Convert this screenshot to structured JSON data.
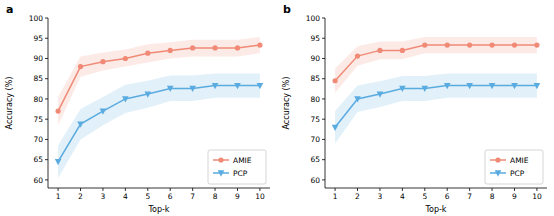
{
  "chart_data": [
    {
      "type": "line",
      "title": "a",
      "x_label": "Top-k",
      "y_label": "Accuracy (%)",
      "x": [
        1,
        2,
        3,
        4,
        5,
        6,
        7,
        8,
        9,
        10
      ],
      "xlim": [
        0.55,
        10.45
      ],
      "xticks": [
        1,
        2,
        3,
        4,
        5,
        6,
        7,
        8,
        9,
        10
      ],
      "ylim": [
        58,
        100
      ],
      "yticks": [
        60,
        65,
        70,
        75,
        80,
        85,
        90,
        95,
        100
      ],
      "grid": false,
      "legend": "lower right",
      "series": [
        {
          "name": "AMIE",
          "color": "#f08a76",
          "marker": "circle",
          "values": [
            77,
            88,
            89.2,
            90,
            91.3,
            92,
            92.6,
            92.6,
            92.6,
            93.3
          ],
          "lower": [
            73.5,
            85.5,
            87,
            88,
            89,
            90,
            90.5,
            90.5,
            90.5,
            91.3
          ],
          "upper": [
            80.5,
            90.5,
            91.5,
            92.2,
            93.5,
            94,
            94.6,
            94.6,
            94.6,
            95.3
          ]
        },
        {
          "name": "PCP",
          "color": "#5aabe0",
          "marker": "triangle_down",
          "values": [
            64.5,
            73.8,
            77,
            80,
            81.2,
            82.6,
            82.6,
            83.3,
            83.3,
            83.3
          ],
          "lower": [
            60.5,
            70,
            73.5,
            76.5,
            77.8,
            79.5,
            79.5,
            80.3,
            80.3,
            80.3
          ],
          "upper": [
            68.5,
            77.5,
            80.5,
            83.5,
            84.5,
            85.8,
            85.8,
            86.3,
            86.3,
            86.3
          ]
        }
      ]
    },
    {
      "type": "line",
      "title": "b",
      "x_label": "Top-k",
      "y_label": "Accuracy (%)",
      "x": [
        1,
        2,
        3,
        4,
        5,
        6,
        7,
        8,
        9,
        10
      ],
      "xlim": [
        0.55,
        10.45
      ],
      "xticks": [
        1,
        2,
        3,
        4,
        5,
        6,
        7,
        8,
        9,
        10
      ],
      "ylim": [
        58,
        100
      ],
      "yticks": [
        60,
        65,
        70,
        75,
        80,
        85,
        90,
        95,
        100
      ],
      "grid": false,
      "legend": "lower right",
      "series": [
        {
          "name": "AMIE",
          "color": "#f08a76",
          "marker": "circle",
          "values": [
            84.5,
            90.6,
            92,
            92,
            93.3,
            93.3,
            93.3,
            93.3,
            93.3,
            93.3
          ],
          "lower": [
            81.5,
            88.2,
            89.8,
            89.8,
            91.3,
            91.3,
            91.3,
            91.3,
            91.3,
            91.3
          ],
          "upper": [
            87.5,
            93,
            94.2,
            94.2,
            95.3,
            95.3,
            95.3,
            95.3,
            95.3,
            95.3
          ]
        },
        {
          "name": "PCP",
          "color": "#5aabe0",
          "marker": "triangle_down",
          "values": [
            73,
            80,
            81.2,
            82.6,
            82.6,
            83.3,
            83.3,
            83.3,
            83.3,
            83.3
          ],
          "lower": [
            69,
            76.8,
            78,
            79.5,
            79.5,
            80.3,
            80.3,
            80.3,
            80.3,
            80.3
          ],
          "upper": [
            77,
            83.3,
            84.4,
            85.7,
            85.7,
            86.3,
            86.3,
            86.3,
            86.3,
            86.3
          ]
        }
      ]
    }
  ]
}
